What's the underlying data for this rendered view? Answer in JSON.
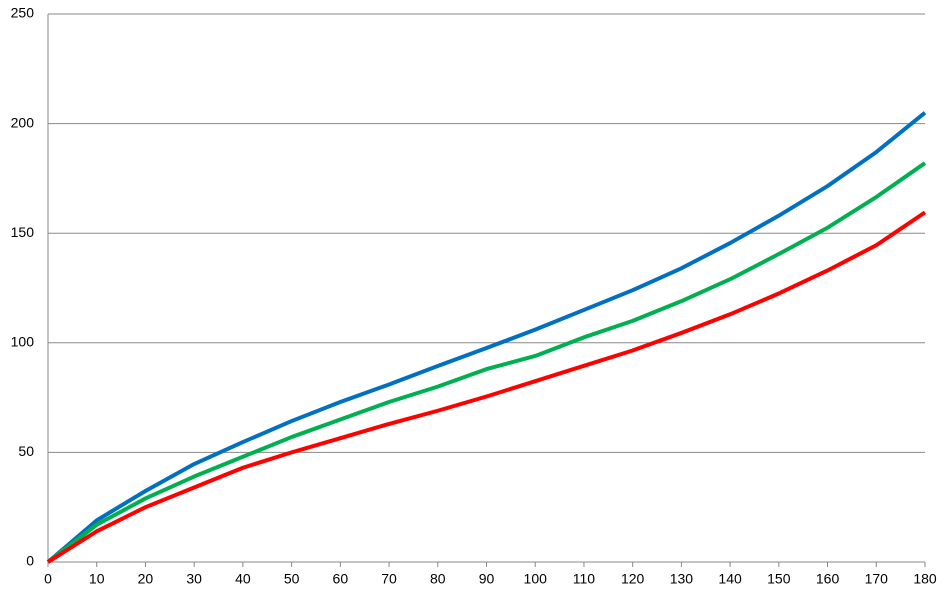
{
  "chart_data": {
    "type": "line",
    "x": [
      0,
      10,
      20,
      30,
      40,
      50,
      60,
      70,
      80,
      90,
      100,
      110,
      120,
      130,
      140,
      150,
      160,
      170,
      180
    ],
    "series": [
      {
        "color": "#0070c0",
        "values": [
          0,
          19,
          32.4,
          44.7,
          54.7,
          64.3,
          73,
          81,
          89.4,
          97.6,
          106,
          115,
          124,
          134,
          145.5,
          158,
          171.5,
          187,
          205
        ]
      },
      {
        "color": "#00b050",
        "values": [
          0,
          17,
          29,
          39,
          48,
          57,
          65,
          73,
          80,
          88,
          94,
          102.5,
          110,
          119,
          129,
          140.5,
          152.5,
          166.5,
          182
        ]
      },
      {
        "color": "#ff0000",
        "values": [
          0,
          14,
          25,
          34,
          43,
          50,
          56.5,
          63,
          69,
          75.5,
          82.5,
          89.5,
          96.5,
          104.5,
          113,
          122.5,
          133,
          144.5,
          159.5
        ]
      }
    ],
    "xlim": [
      0,
      180
    ],
    "xticks": [
      0,
      10,
      20,
      30,
      40,
      50,
      60,
      70,
      80,
      90,
      100,
      110,
      120,
      130,
      140,
      150,
      160,
      170,
      180
    ],
    "ylim": [
      0,
      250
    ],
    "yticks": [
      0,
      50,
      100,
      150,
      200,
      250
    ],
    "grid": true
  }
}
